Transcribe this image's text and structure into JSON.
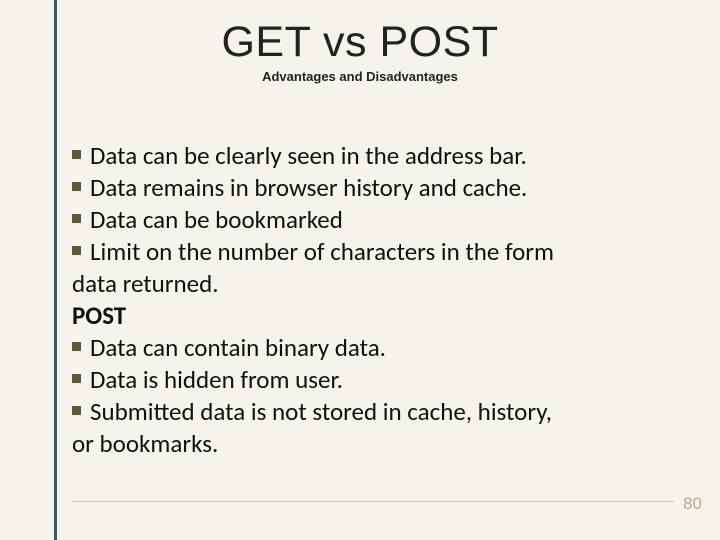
{
  "title": "GET vs POST",
  "subtitle": "Advantages and Disadvantages",
  "lines": [
    {
      "bullet": true,
      "text": "Data can be clearly seen in the address bar."
    },
    {
      "bullet": true,
      "text": "Data remains in browser history and cache."
    },
    {
      "bullet": true,
      "text": "Data can be bookmarked"
    },
    {
      "bullet": true,
      "text": "Limit on the number of characters in the form"
    },
    {
      "bullet": false,
      "text": "data returned."
    },
    {
      "bullet": false,
      "text": "POST",
      "bold": true
    },
    {
      "bullet": true,
      "text": "Data can contain binary data."
    },
    {
      "bullet": true,
      "text": "Data is hidden from user."
    },
    {
      "bullet": true,
      "text": "Submitted data is not stored in cache, history,"
    },
    {
      "bullet": false,
      "text": "or bookmarks."
    }
  ],
  "page_number": "80",
  "colors": {
    "background": "#f5f3ec",
    "accent_line": "#3b5a5a",
    "bullet": "#5a5a3e",
    "text": "#111111",
    "page_num": "#b9a88a",
    "footer_rule": "#c9c5b8"
  },
  "typography": {
    "title_fontsize": 43,
    "subtitle_fontsize": 13,
    "body_fontsize": 25,
    "pagenum_fontsize": 17
  }
}
